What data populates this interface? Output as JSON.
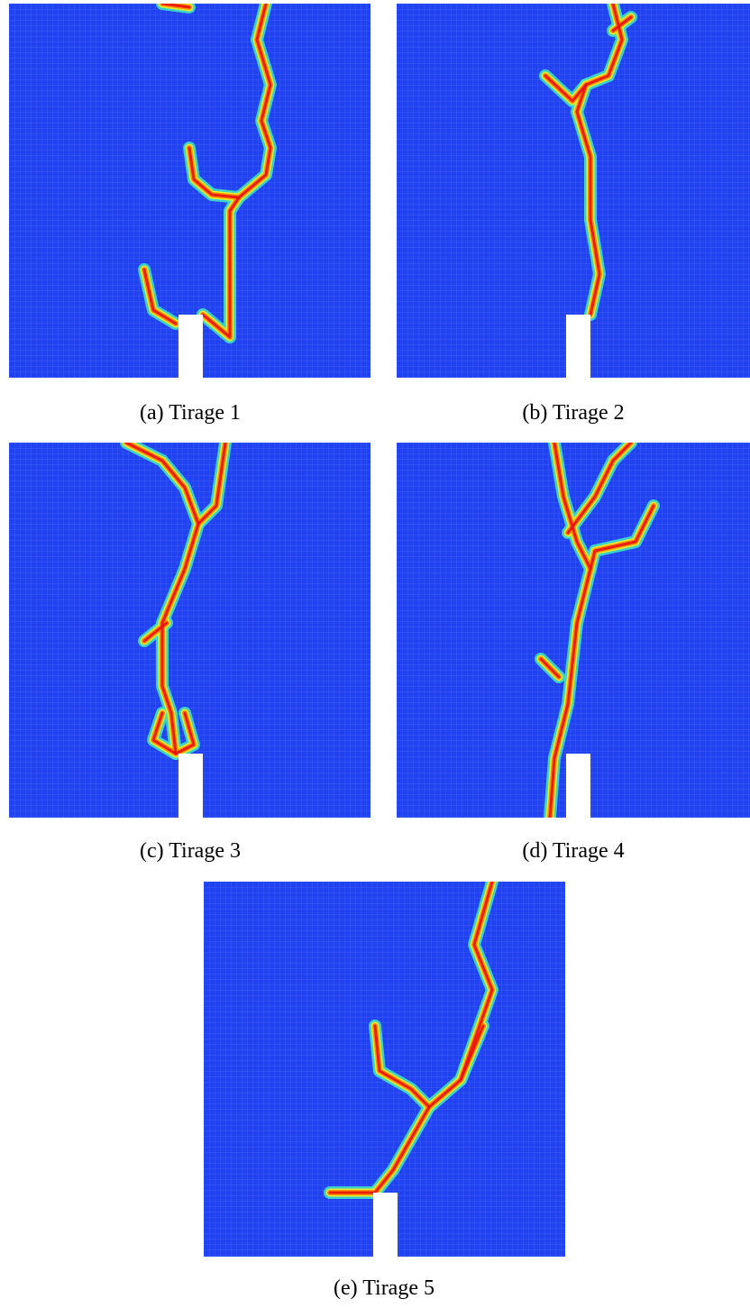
{
  "figure": {
    "panels": [
      {
        "caption": "(a) Tirage 1"
      },
      {
        "caption": "(b) Tirage 2"
      },
      {
        "caption": "(c) Tirage 3"
      },
      {
        "caption": "(d) Tirage 4"
      },
      {
        "caption": "(e) Tirage 5"
      }
    ]
  }
}
